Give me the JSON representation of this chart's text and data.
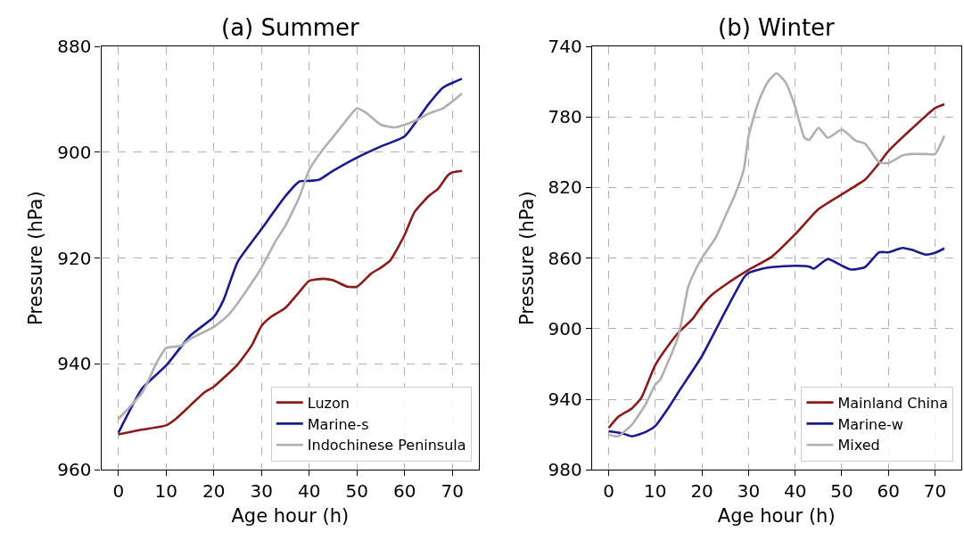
{
  "chart_data": [
    {
      "type": "line",
      "title": "(a) Summer",
      "xlabel": "Age hour (h)",
      "ylabel": "Pressure (hPa)",
      "xlim": [
        -3.6,
        75.6
      ],
      "xticks": [
        0,
        10,
        20,
        30,
        40,
        50,
        60,
        70
      ],
      "ylim": [
        960,
        880
      ],
      "yticks": [
        880,
        900,
        920,
        940,
        960
      ],
      "grid": true,
      "legend": "bottom right",
      "line_style": "solid",
      "series": [
        {
          "name": "Luzon",
          "color": "#8b1a1a",
          "x": [
            0,
            5,
            10,
            12,
            15,
            18,
            20,
            25,
            28,
            30,
            32,
            35,
            38,
            40,
            43,
            45,
            48,
            50,
            53,
            55,
            57,
            60,
            62,
            65,
            67,
            69,
            70,
            72
          ],
          "values": [
            953.3,
            952.4,
            951.6,
            950.4,
            947.9,
            945.4,
            944.3,
            940.1,
            936.4,
            932.8,
            931.1,
            929.4,
            926.3,
            924.3,
            923.9,
            924.2,
            925.4,
            925.4,
            922.9,
            921.8,
            920.4,
            915.6,
            911.4,
            908.3,
            906.9,
            904.4,
            903.8,
            903.5
          ]
        },
        {
          "name": "Marine-s",
          "color": "#1a1a8c",
          "x": [
            0,
            5,
            10,
            15,
            20,
            22,
            25,
            30,
            35,
            38,
            40,
            42,
            45,
            50,
            55,
            60,
            65,
            68,
            72
          ],
          "values": [
            953.0,
            944.6,
            940.3,
            934.7,
            931.1,
            928.0,
            920.7,
            914.5,
            908.3,
            905.5,
            905.4,
            905.2,
            903.5,
            901.0,
            898.9,
            897.0,
            890.9,
            887.8,
            886.1
          ]
        },
        {
          "name": "Indochinese Peninsula",
          "color": "#b0b0b0",
          "x": [
            0,
            5,
            8,
            10,
            13,
            15,
            20,
            23,
            25,
            28,
            30,
            33,
            35,
            38,
            40,
            43,
            45,
            48,
            50,
            52,
            55,
            58,
            60,
            63,
            65,
            68,
            70,
            72
          ],
          "values": [
            950.4,
            945.4,
            939.8,
            937.0,
            936.6,
            935.3,
            933.0,
            930.8,
            928.5,
            924.6,
            921.8,
            916.7,
            913.9,
            908.3,
            903.3,
            899.3,
            897.1,
            893.7,
            891.7,
            892.6,
            894.8,
            895.3,
            894.8,
            893.7,
            892.7,
            891.7,
            890.4,
            888.9
          ]
        }
      ]
    },
    {
      "type": "line",
      "title": "(b) Winter",
      "xlabel": "Age hour (h)",
      "ylabel": "Pressure (hPa)",
      "xlim": [
        -3.6,
        75.6
      ],
      "xticks": [
        0,
        10,
        20,
        30,
        40,
        50,
        60,
        70
      ],
      "ylim": [
        980,
        740
      ],
      "yticks": [
        740,
        780,
        820,
        860,
        900,
        940,
        980
      ],
      "grid": true,
      "legend": "bottom right",
      "line_style": "solid",
      "series": [
        {
          "name": "Mainland China",
          "color": "#8b1a1a",
          "x": [
            0,
            2,
            5,
            7,
            10,
            13,
            15,
            18,
            20,
            22,
            25,
            30,
            35,
            40,
            45,
            50,
            55,
            58,
            60,
            65,
            70,
            72
          ],
          "values": [
            956.3,
            950.1,
            945.1,
            939.2,
            920.6,
            908.8,
            902.1,
            894.5,
            887.0,
            881.1,
            875.2,
            866.7,
            859.2,
            846.5,
            832.3,
            823.9,
            815.5,
            806.2,
            799.4,
            786.7,
            775.0,
            772.8
          ]
        },
        {
          "name": "Marine-w",
          "color": "#1a1a8c",
          "x": [
            0,
            3,
            5,
            8,
            10,
            13,
            15,
            20,
            25,
            29,
            30,
            33,
            35,
            40,
            43,
            44,
            47,
            50,
            52,
            55,
            58,
            60,
            63,
            65,
            68,
            70,
            72
          ],
          "values": [
            958.2,
            959.4,
            961.0,
            958.5,
            955.2,
            944.2,
            935.8,
            915.6,
            890.3,
            871.0,
            868.5,
            866.0,
            865.1,
            864.3,
            864.8,
            866.0,
            860.5,
            864.3,
            866.5,
            865.1,
            856.7,
            856.7,
            854.2,
            855.3,
            858.0,
            857.0,
            854.5
          ]
        },
        {
          "name": "Mixed",
          "color": "#b0b0b0",
          "x": [
            0,
            2,
            5,
            8,
            10,
            11,
            13,
            15,
            17,
            18,
            20,
            23,
            25,
            27,
            29,
            30,
            32,
            34,
            36,
            38,
            40,
            42,
            43,
            45,
            47,
            50,
            53,
            55,
            58,
            60,
            63,
            65,
            68,
            70,
            72
          ],
          "values": [
            960.2,
            961.0,
            954.3,
            942.5,
            931.6,
            929.1,
            917.3,
            903.8,
            876.9,
            870.1,
            860.0,
            848.2,
            836.4,
            824.7,
            809.5,
            791.0,
            772.4,
            760.6,
            755.2,
            760.6,
            774.1,
            791.8,
            793.0,
            786.2,
            791.8,
            787.2,
            793.4,
            795.1,
            805.7,
            806.1,
            801.8,
            801.0,
            801.0,
            801.0,
            790.6
          ]
        }
      ]
    }
  ]
}
